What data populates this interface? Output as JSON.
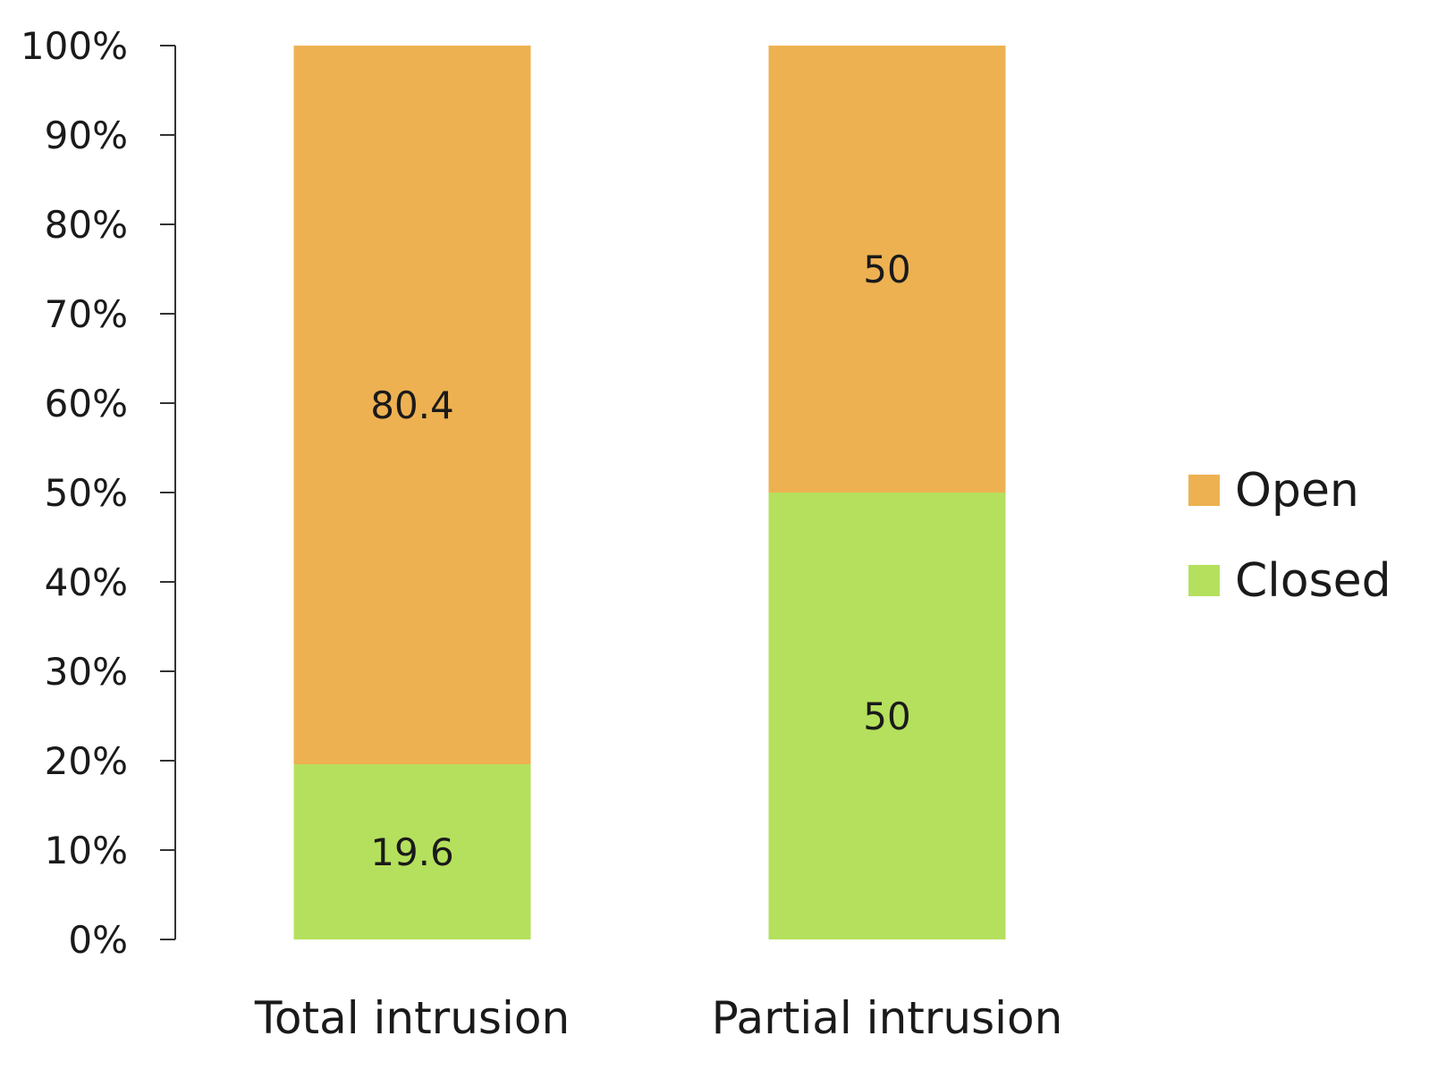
{
  "chart_data": {
    "type": "bar",
    "stacked": true,
    "categories": [
      "Total intrusion",
      "Partial intrusion"
    ],
    "series": [
      {
        "name": "Closed",
        "values": [
          19.6,
          50
        ],
        "color": "#b5e05d"
      },
      {
        "name": "Open",
        "values": [
          80.4,
          50
        ],
        "color": "#edb152"
      }
    ],
    "y_ticks": [
      "0%",
      "10%",
      "20%",
      "30%",
      "40%",
      "50%",
      "60%",
      "70%",
      "80%",
      "90%",
      "100%"
    ],
    "ylim": [
      0,
      100
    ],
    "grid": false,
    "legend": {
      "placement": "right",
      "items": [
        "Open",
        "Closed"
      ]
    }
  }
}
